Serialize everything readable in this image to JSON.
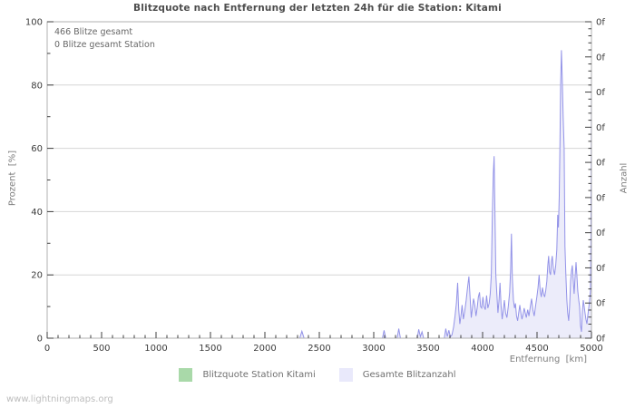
{
  "chart_data": {
    "type": "area",
    "title": "Blitzquote nach Entfernung der letzten 24h für die Station: Kitami",
    "annotations": [
      "466 Blitze gesamt",
      "0 Blitze gesamt Station"
    ],
    "grid": "horizontal",
    "legend_position": "bottom",
    "x_axis": {
      "label": "Entfernung  [km]",
      "min": 0,
      "max": 5000,
      "major_tick": 500,
      "minor_tick": 100,
      "tick_labels": [
        "0",
        "500",
        "1000",
        "1500",
        "2000",
        "2500",
        "3000",
        "3500",
        "4000",
        "4500",
        "5000"
      ]
    },
    "y_axis_left": {
      "label": "Prozent  [%]",
      "min": 0,
      "max": 100,
      "major_tick": 20,
      "minor_tick": 10,
      "tick_labels": [
        "0",
        "20",
        "40",
        "60",
        "80",
        "100"
      ]
    },
    "y_axis_right": {
      "label": "Anzahl",
      "tick_labels": [
        "0f",
        "0f",
        "0f",
        "0f",
        "0f",
        "0f",
        "0f",
        "0f",
        "0f",
        "0f"
      ],
      "minor_per_major": 5
    },
    "series": [
      {
        "name": "Blitzquote Station Kitami",
        "type": "line",
        "color": "#a9d9a9",
        "fill": null,
        "points": [
          [
            0,
            0
          ],
          [
            5000,
            0
          ]
        ]
      },
      {
        "name": "Gesamte Blitzanzahl",
        "type": "area",
        "color": "#9393e8",
        "fill": "#ececfa",
        "points": [
          [
            0,
            0
          ],
          [
            400,
            0
          ],
          [
            800,
            0
          ],
          [
            1200,
            0
          ],
          [
            1600,
            0
          ],
          [
            2000,
            0
          ],
          [
            2320,
            0
          ],
          [
            2340,
            2.2
          ],
          [
            2360,
            0
          ],
          [
            2700,
            0
          ],
          [
            3080,
            0
          ],
          [
            3095,
            2.5
          ],
          [
            3110,
            0
          ],
          [
            3215,
            0
          ],
          [
            3230,
            3
          ],
          [
            3245,
            0
          ],
          [
            3400,
            0
          ],
          [
            3413,
            2.8
          ],
          [
            3428,
            0.5
          ],
          [
            3443,
            2
          ],
          [
            3458,
            0
          ],
          [
            3560,
            0
          ],
          [
            3648,
            0
          ],
          [
            3662,
            3
          ],
          [
            3676,
            0.5
          ],
          [
            3690,
            2.5
          ],
          [
            3704,
            0.5
          ],
          [
            3718,
            1
          ],
          [
            3733,
            3.5
          ],
          [
            3747,
            7
          ],
          [
            3759,
            11
          ],
          [
            3771,
            17.5
          ],
          [
            3781,
            9
          ],
          [
            3791,
            4.5
          ],
          [
            3801,
            7
          ],
          [
            3812,
            10.5
          ],
          [
            3823,
            6
          ],
          [
            3836,
            8.5
          ],
          [
            3849,
            12
          ],
          [
            3862,
            16
          ],
          [
            3874,
            19.5
          ],
          [
            3885,
            13
          ],
          [
            3896,
            6.5
          ],
          [
            3907,
            9.5
          ],
          [
            3917,
            12.5
          ],
          [
            3928,
            10.5
          ],
          [
            3939,
            7
          ],
          [
            3950,
            9.5
          ],
          [
            3961,
            13
          ],
          [
            3972,
            14.5
          ],
          [
            3982,
            10
          ],
          [
            3992,
            9.5
          ],
          [
            4003,
            13
          ],
          [
            4013,
            10
          ],
          [
            4025,
            9
          ],
          [
            4037,
            13.5
          ],
          [
            4048,
            9.5
          ],
          [
            4060,
            11
          ],
          [
            4070,
            14
          ],
          [
            4080,
            20
          ],
          [
            4089,
            38
          ],
          [
            4098,
            52
          ],
          [
            4106,
            57.5
          ],
          [
            4114,
            38
          ],
          [
            4122,
            20
          ],
          [
            4131,
            14
          ],
          [
            4141,
            8
          ],
          [
            4151,
            12
          ],
          [
            4160,
            17.5
          ],
          [
            4170,
            10
          ],
          [
            4180,
            6
          ],
          [
            4190,
            9
          ],
          [
            4200,
            12
          ],
          [
            4211,
            8
          ],
          [
            4223,
            6.5
          ],
          [
            4236,
            10
          ],
          [
            4248,
            14.5
          ],
          [
            4257,
            21
          ],
          [
            4265,
            33
          ],
          [
            4273,
            19
          ],
          [
            4283,
            12
          ],
          [
            4293,
            9.5
          ],
          [
            4302,
            11
          ],
          [
            4312,
            7
          ],
          [
            4322,
            5.5
          ],
          [
            4332,
            8
          ],
          [
            4342,
            10.5
          ],
          [
            4352,
            8
          ],
          [
            4362,
            6
          ],
          [
            4372,
            7.5
          ],
          [
            4382,
            9.5
          ],
          [
            4392,
            8
          ],
          [
            4402,
            6.5
          ],
          [
            4414,
            9
          ],
          [
            4426,
            7
          ],
          [
            4438,
            10
          ],
          [
            4450,
            12.5
          ],
          [
            4462,
            9
          ],
          [
            4474,
            7
          ],
          [
            4486,
            10
          ],
          [
            4498,
            13
          ],
          [
            4509,
            16
          ],
          [
            4519,
            20
          ],
          [
            4529,
            15
          ],
          [
            4539,
            13
          ],
          [
            4550,
            16
          ],
          [
            4560,
            14
          ],
          [
            4570,
            13
          ],
          [
            4580,
            15
          ],
          [
            4590,
            18
          ],
          [
            4599,
            23
          ],
          [
            4607,
            26
          ],
          [
            4615,
            21
          ],
          [
            4624,
            20
          ],
          [
            4632,
            24
          ],
          [
            4640,
            26
          ],
          [
            4650,
            22
          ],
          [
            4661,
            20
          ],
          [
            4672,
            23
          ],
          [
            4682,
            28
          ],
          [
            4690,
            39
          ],
          [
            4697,
            35
          ],
          [
            4704,
            45
          ],
          [
            4711,
            62
          ],
          [
            4717,
            80
          ],
          [
            4724,
            91
          ],
          [
            4732,
            82
          ],
          [
            4740,
            70
          ],
          [
            4749,
            60
          ],
          [
            4757,
            29
          ],
          [
            4765,
            20
          ],
          [
            4774,
            12
          ],
          [
            4782,
            8
          ],
          [
            4791,
            5.5
          ],
          [
            4799,
            10
          ],
          [
            4808,
            18
          ],
          [
            4816,
            21
          ],
          [
            4824,
            23
          ],
          [
            4833,
            18
          ],
          [
            4841,
            14
          ],
          [
            4849,
            19
          ],
          [
            4858,
            24
          ],
          [
            4866,
            20
          ],
          [
            4874,
            15
          ],
          [
            4883,
            12
          ],
          [
            4891,
            10
          ],
          [
            4899,
            4
          ],
          [
            4908,
            2
          ],
          [
            4916,
            8
          ],
          [
            4925,
            12
          ],
          [
            4933,
            10
          ],
          [
            4941,
            8
          ],
          [
            4949,
            6
          ],
          [
            4958,
            4.5
          ],
          [
            4966,
            7
          ],
          [
            4975,
            9.5
          ],
          [
            4983,
            12
          ],
          [
            4991,
            15
          ],
          [
            4995,
            30
          ],
          [
            4998,
            60
          ],
          [
            5000,
            88
          ]
        ]
      }
    ],
    "colors": {
      "grid": "#d6d6d6",
      "border": "#b0b0b0",
      "tick": "#3f3f3f",
      "tick_text": "#3c3c3c"
    }
  },
  "legend": {
    "items": [
      {
        "label": "Blitzquote Station Kitami",
        "color": "#a9d9a9"
      },
      {
        "label": "Gesamte Blitzanzahl",
        "color": "#e9e9fb"
      }
    ]
  },
  "footer": {
    "watermark": "www.lightningmaps.org"
  }
}
